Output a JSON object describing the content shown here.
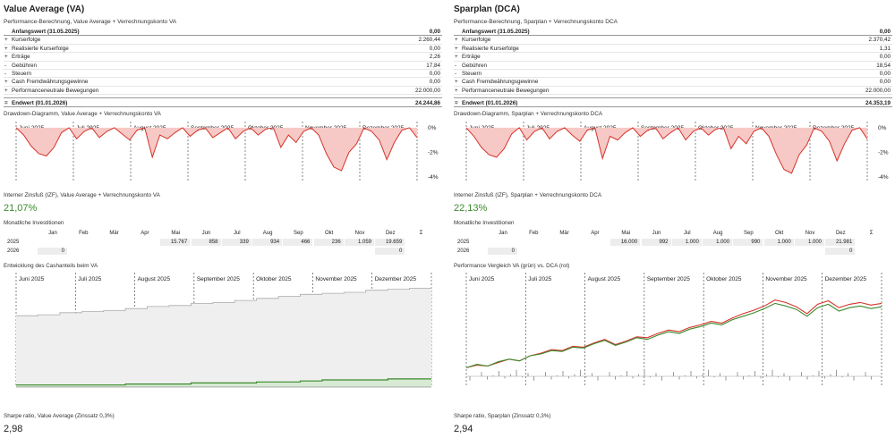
{
  "va": {
    "title": "Value Average (VA)",
    "subtitle": "Performance-Berechnung, Value Average + Verrechnungskonto VA",
    "head_label": "Anfangswert (31.05.2025)",
    "head_value": "0,00",
    "rows": [
      {
        "sign": "+",
        "label": "Kurserfolge",
        "value": "2.260,44"
      },
      {
        "sign": "+",
        "label": "Realisierte Kurserfolge",
        "value": "0,00"
      },
      {
        "sign": "+",
        "label": "Erträge",
        "value": "2,26"
      },
      {
        "sign": "-",
        "label": "Gebühren",
        "value": "17,84"
      },
      {
        "sign": "-",
        "label": "Steuern",
        "value": "0,00"
      },
      {
        "sign": "+",
        "label": "Cash Fremdwährungsgewinne",
        "value": "0,00"
      },
      {
        "sign": "+",
        "label": "Performanceneutrale Bewegungen",
        "value": "22.000,00"
      }
    ],
    "total_sign": "=",
    "total_label": "Endwert (01.01.2026)",
    "total_value": "24.244,86",
    "drawdown_label": "Drawdown-Diagramm, Value Average + Verrechnungskonto VA",
    "irr_label": "Interner Zinsfuß (IZF), Value Average + Verrechnungskonto VA",
    "irr_value": "21,07%",
    "monthly_label": "Monatliche Investitionen",
    "monthly_2025": [
      "",
      "",
      "",
      "",
      "15.767",
      "858",
      "339",
      "934",
      "466",
      "236",
      "1.059",
      "19.659"
    ],
    "monthly_2026": [
      "0",
      "",
      "",
      "",
      "",
      "",
      "",
      "",
      "",
      "",
      "",
      "0"
    ],
    "chart2_label": "Entwicklung des Cashanteils beim VA",
    "sharpe_label": "Sharpe ratio, Value Average (Zinssatz 0,3%)",
    "sharpe_value": "2,98"
  },
  "dca": {
    "title": "Sparplan (DCA)",
    "subtitle": "Performance-Berechnung, Sparplan + Verrechnungskonto DCA",
    "head_label": "Anfangswert (31.05.2025)",
    "head_value": "0,00",
    "rows": [
      {
        "sign": "+",
        "label": "Kurserfolge",
        "value": "2.370,42"
      },
      {
        "sign": "+",
        "label": "Realisierte Kurserfolge",
        "value": "1,31"
      },
      {
        "sign": "+",
        "label": "Erträge",
        "value": "0,00"
      },
      {
        "sign": "-",
        "label": "Gebühren",
        "value": "18,54"
      },
      {
        "sign": "-",
        "label": "Steuern",
        "value": "0,00"
      },
      {
        "sign": "+",
        "label": "Cash Fremdwährungsgewinne",
        "value": "0,00"
      },
      {
        "sign": "+",
        "label": "Performanceneutrale Bewegungen",
        "value": "22.000,00"
      }
    ],
    "total_sign": "=",
    "total_label": "Endwert (01.01.2026)",
    "total_value": "24.353,19",
    "drawdown_label": "Drawdown-Diagramm, Sparplan + Verrechnungskonto DCA",
    "irr_label": "Interner Zinsfuß (IZF), Sparplan + Verrechnungskonto DCA",
    "irr_value": "22,13%",
    "monthly_label": "Monatliche Investitionen",
    "monthly_2025": [
      "",
      "",
      "",
      "",
      "16.000",
      "992",
      "1.000",
      "1.000",
      "990",
      "1.000",
      "1.000",
      "21.981"
    ],
    "monthly_2026": [
      "0",
      "",
      "",
      "",
      "",
      "",
      "",
      "",
      "",
      "",
      "",
      "0"
    ],
    "chart2_label": "Performance Vergleich VA (grün) vs. DCA (rot)",
    "sharpe_label": "Sharpe ratio, Sparplan (Zinssatz 0,3%)",
    "sharpe_value": "2,94"
  },
  "months_header": [
    "Jan",
    "Feb",
    "Mär",
    "Apr",
    "Mai",
    "Jun",
    "Jul",
    "Aug",
    "Sep",
    "Okt",
    "Nov",
    "Dez",
    "Σ"
  ],
  "years": [
    "2025",
    "2026"
  ],
  "chart_months": [
    "Juni 2025",
    "Juli 2025",
    "August 2025",
    "September 2025",
    "Oktober 2025",
    "November 2025",
    "Dezember 2025"
  ],
  "colors": {
    "green": "#3b8a2e",
    "red": "#d6332a",
    "drawdown_fill": "#f6c9c6",
    "cash_fill": "#d7ead3",
    "gray_fill": "#efefef"
  },
  "chart_data": [
    {
      "type": "area",
      "title": "Drawdown-Diagramm, Value Average + Verrechnungskonto VA",
      "x_range": [
        "2025-06-01",
        "2025-12-31"
      ],
      "ylim": [
        -4.3,
        0.5
      ],
      "yticks": [
        "0%",
        "-2%",
        "-4%"
      ],
      "series": [
        {
          "name": "",
          "values": [
            0,
            -0.6,
            -1.5,
            -2.1,
            -2.3,
            -1.6,
            -0.4,
            0,
            -0.9,
            -0.3,
            0,
            -0.8,
            -0.3,
            0,
            -0.5,
            -1.0,
            -0.2,
            0,
            -2.4,
            -0.6,
            -0.9,
            -0.4,
            0,
            -0.7,
            -0.2,
            0,
            -0.8,
            -0.4,
            0,
            -0.9,
            -0.3,
            0,
            -0.6,
            -0.1,
            0,
            -1.6,
            -0.6,
            -1.2,
            -0.3,
            0,
            -0.6,
            -2.1,
            -3.2,
            -3.5,
            -2.0,
            -1.3,
            0,
            -0.3,
            -1.0,
            -2.6,
            -1.2,
            -0.2,
            0,
            -0.8
          ]
        }
      ]
    },
    {
      "type": "area",
      "title": "Drawdown-Diagramm, Sparplan + Verrechnungskonto DCA",
      "x_range": [
        "2025-06-01",
        "2025-12-31"
      ],
      "ylim": [
        -4.3,
        0.5
      ],
      "yticks": [
        "0%",
        "-2%",
        "-4%"
      ],
      "series": [
        {
          "name": "",
          "values": [
            0,
            -0.7,
            -1.6,
            -2.2,
            -2.4,
            -1.7,
            -0.5,
            0,
            -1.0,
            -0.3,
            0,
            -0.9,
            -0.3,
            0,
            -0.6,
            -1.1,
            -0.2,
            0,
            -2.5,
            -0.7,
            -1.0,
            -0.4,
            0,
            -0.7,
            -0.2,
            0,
            -0.9,
            -0.4,
            0,
            -1.0,
            -0.3,
            0,
            -0.6,
            -0.1,
            0,
            -1.7,
            -0.7,
            -1.3,
            -0.3,
            0,
            -0.7,
            -2.2,
            -3.4,
            -3.7,
            -2.2,
            -1.4,
            0,
            -0.3,
            -1.1,
            -2.7,
            -1.3,
            -0.2,
            0,
            -0.9
          ]
        }
      ]
    },
    {
      "type": "area",
      "title": "Entwicklung des Cashanteils beim VA",
      "x_range": [
        "2025-06-01",
        "2025-12-31"
      ],
      "series": [
        {
          "name": "",
          "values": [
            0.7,
            0.71,
            0.73,
            0.74,
            0.75,
            0.77,
            0.79,
            0.8,
            0.82,
            0.83,
            0.85,
            0.87,
            0.89,
            0.91,
            0.92,
            0.93,
            0.95,
            0.96,
            0.97,
            0.98
          ]
        },
        {
          "name": "",
          "values": [
            0.02,
            0.02,
            0.02,
            0.02,
            0.02,
            0.03,
            0.03,
            0.03,
            0.04,
            0.04,
            0.04,
            0.05,
            0.05,
            0.06,
            0.07,
            0.07,
            0.07,
            0.08,
            0.08,
            0.08
          ]
        }
      ]
    },
    {
      "type": "line",
      "title": "Performance Vergleich VA (grün) vs. DCA (rot)",
      "x_range": [
        "2025-06-01",
        "2025-12-31"
      ],
      "series": [
        {
          "name": "VA",
          "values": [
            0.1,
            0.14,
            0.12,
            0.17,
            0.2,
            0.18,
            0.24,
            0.26,
            0.3,
            0.29,
            0.34,
            0.33,
            0.38,
            0.42,
            0.36,
            0.4,
            0.45,
            0.43,
            0.48,
            0.52,
            0.5,
            0.55,
            0.58,
            0.62,
            0.6,
            0.66,
            0.7,
            0.74,
            0.79,
            0.85,
            0.82,
            0.78,
            0.7,
            0.8,
            0.84,
            0.76,
            0.8,
            0.82,
            0.79,
            0.81
          ]
        },
        {
          "name": "DCA",
          "values": [
            0.1,
            0.13,
            0.12,
            0.16,
            0.2,
            0.18,
            0.24,
            0.27,
            0.31,
            0.3,
            0.35,
            0.34,
            0.39,
            0.43,
            0.37,
            0.41,
            0.46,
            0.45,
            0.5,
            0.54,
            0.52,
            0.57,
            0.6,
            0.64,
            0.62,
            0.68,
            0.73,
            0.77,
            0.82,
            0.89,
            0.86,
            0.81,
            0.73,
            0.84,
            0.88,
            0.8,
            0.84,
            0.86,
            0.83,
            0.85
          ]
        }
      ]
    }
  ]
}
